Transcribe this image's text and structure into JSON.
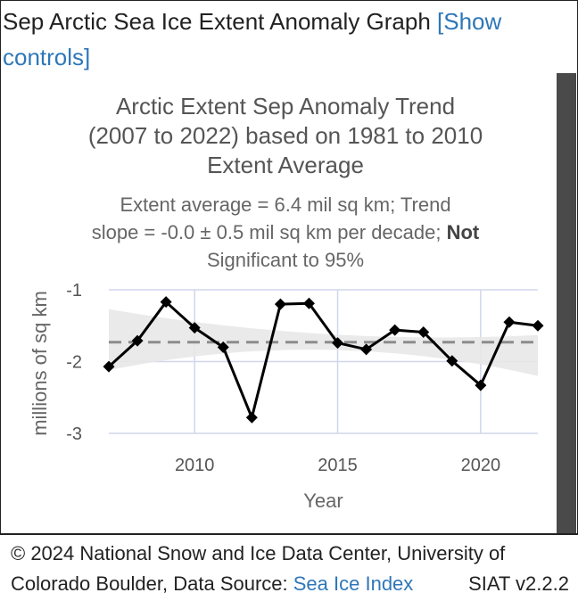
{
  "header": {
    "title": "Sep Arctic Sea Ice Extent Anomaly Graph ",
    "controls_link": "[Show controls]"
  },
  "footer": {
    "copyright": "© 2024 National Snow and Ice Data Center, University of",
    "source_prefix": "Colorado Boulder, Data Source: ",
    "source_link": "Sea Ice Index",
    "version": "SIAT v2.2.2"
  },
  "colors": {
    "line": "#000000",
    "trend": "#8c8c8c",
    "band": "#e8e8e8",
    "grid": "#d0d6ec",
    "link": "#2f77b8"
  },
  "chart_data": {
    "type": "line",
    "title_lines": [
      "Arctic Extent Sep Anomaly Trend",
      "(2007 to 2022) based on 1981 to 2010",
      "Extent Average"
    ],
    "subtitle_lines": [
      "Extent average = 6.4 mil sq km; Trend",
      "slope = -0.0 ± 0.5 mil sq km per decade; ",
      "Significant to 95%"
    ],
    "subtitle_bold": "Not",
    "xlabel": "Year",
    "ylabel": "millions of sq km",
    "xlim": [
      2007,
      2022
    ],
    "ylim": [
      -3,
      -1
    ],
    "xticks": [
      2010,
      2015,
      2020
    ],
    "yticks": [
      -1,
      -2,
      -3
    ],
    "grid": true,
    "x": [
      2007,
      2008,
      2009,
      2010,
      2011,
      2012,
      2013,
      2014,
      2015,
      2016,
      2017,
      2018,
      2019,
      2020,
      2021,
      2022
    ],
    "values": [
      -2.07,
      -1.71,
      -1.17,
      -1.53,
      -1.8,
      -2.78,
      -1.2,
      -1.19,
      -1.74,
      -1.83,
      -1.56,
      -1.59,
      -1.99,
      -2.33,
      -1.45,
      -1.5
    ],
    "trend": {
      "start": -1.73,
      "end": -1.73
    },
    "confidence_band": {
      "upper": [
        -1.27,
        -1.63
      ],
      "lower": [
        -2.12,
        -2.2
      ],
      "mid": [
        -1.67,
        -1.78
      ]
    }
  }
}
